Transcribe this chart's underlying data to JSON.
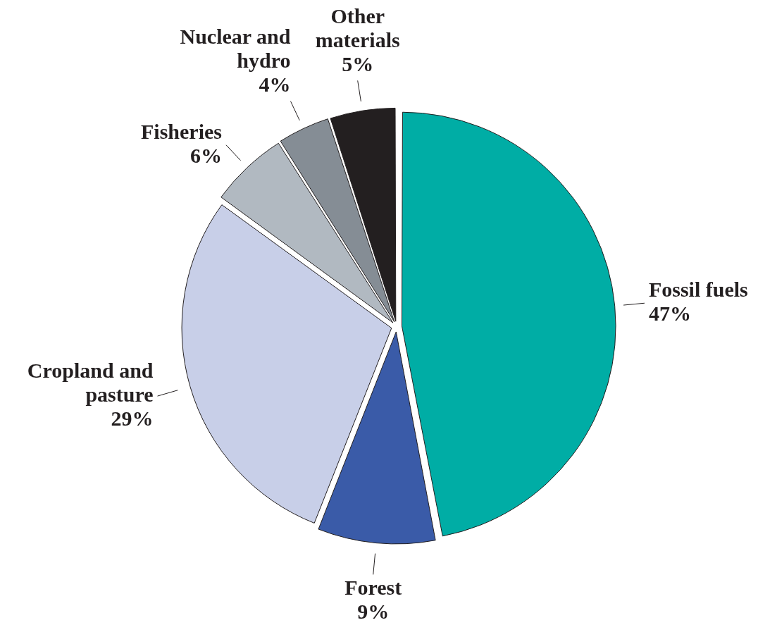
{
  "chart_data": {
    "type": "pie",
    "categories": [
      "Fossil fuels",
      "Forest",
      "Cropland and pasture",
      "Fisheries",
      "Nuclear and hydro",
      "Other materials"
    ],
    "values": [
      47,
      9,
      29,
      6,
      4,
      5
    ],
    "colors": [
      "#00ada5",
      "#3a5ba8",
      "#c8cfe8",
      "#b1b9c1",
      "#858d95",
      "#231f20"
    ],
    "value_labels": [
      "47%",
      "9%",
      "29%",
      "6%",
      "4%",
      "5%"
    ],
    "legend": false
  }
}
